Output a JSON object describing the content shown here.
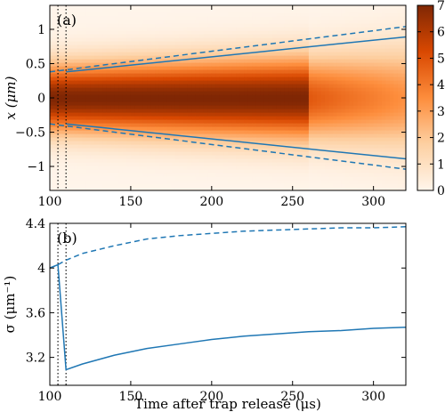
{
  "chart_data": [
    {
      "type": "heatmap",
      "panel_label": "(a)",
      "ylabel": "x (μm)",
      "xlim": [
        100,
        320
      ],
      "ylim": [
        -1.35,
        1.35
      ],
      "xticks": [
        100,
        150,
        200,
        250,
        300
      ],
      "yticks": [
        -1,
        -0.5,
        0,
        0.5,
        1
      ],
      "ytick_labels": [
        "−1",
        "−0.5",
        "0",
        "0.5",
        "1"
      ],
      "colorbar": {
        "range": [
          0,
          7
        ],
        "ticks": [
          0,
          1,
          2,
          3,
          4,
          5,
          6,
          7
        ]
      },
      "colormap": [
        "#fff5eb",
        "#fdd0a2",
        "#fd8d3c",
        "#d94801",
        "#7f2704"
      ],
      "heatmap_profile": {
        "center_density": 7,
        "gaussian_width_um": {
          "t": [
            100,
            260,
            300,
            320
          ],
          "values": [
            0.34,
            0.42,
            0.48,
            0.52
          ]
        },
        "plateau_until_us": 260
      },
      "vlines": [
        105,
        110
      ],
      "series": [
        {
          "style": "solid",
          "x": [
            110,
            320
          ],
          "upper": [
            0.38,
            0.89
          ],
          "lower": [
            -0.38,
            -0.89
          ]
        },
        {
          "style": "dashed",
          "x": [
            100,
            320
          ],
          "upper": [
            0.38,
            1.04
          ],
          "lower": [
            -0.38,
            -1.04
          ]
        }
      ]
    },
    {
      "type": "line",
      "panel_label": "(b)",
      "xlabel": "Time after trap release (μs)",
      "ylabel": "σ (μm⁻¹)",
      "xlim": [
        100,
        320
      ],
      "ylim": [
        2.95,
        4.4
      ],
      "xticks": [
        100,
        150,
        200,
        250,
        300
      ],
      "yticks": [
        3.2,
        3.6,
        4,
        4.4
      ],
      "vlines": [
        105,
        110
      ],
      "series": [
        {
          "style": "solid",
          "x": [
            100,
            105,
            110,
            120,
            140,
            160,
            180,
            200,
            220,
            240,
            260,
            280,
            300,
            320
          ],
          "y": [
            4.0,
            4.03,
            3.09,
            3.14,
            3.22,
            3.28,
            3.32,
            3.36,
            3.39,
            3.41,
            3.43,
            3.44,
            3.46,
            3.47
          ]
        },
        {
          "style": "dashed",
          "x": [
            100,
            105,
            110,
            120,
            140,
            160,
            180,
            200,
            220,
            240,
            260,
            280,
            300,
            320
          ],
          "y": [
            4.0,
            4.03,
            4.07,
            4.13,
            4.2,
            4.26,
            4.29,
            4.31,
            4.33,
            4.34,
            4.35,
            4.36,
            4.36,
            4.37
          ]
        }
      ]
    }
  ]
}
